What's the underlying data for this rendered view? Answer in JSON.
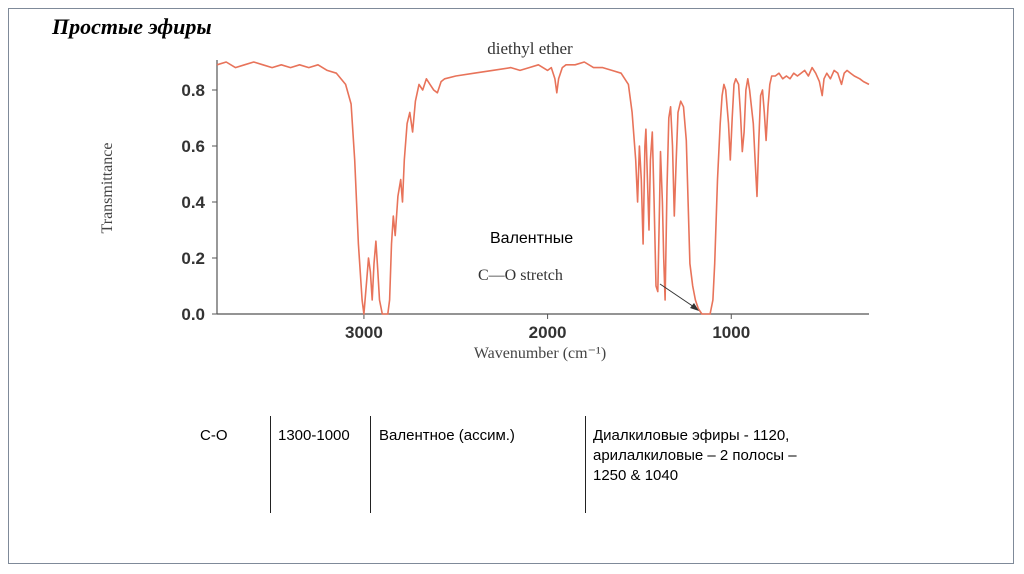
{
  "slide": {
    "title": "Простые эфиры"
  },
  "chart_data": {
    "type": "line",
    "title": "diethyl ether",
    "xlabel": "Wavenumber (cm⁻¹)",
    "ylabel": "Transmittance",
    "xlim": [
      3800,
      250
    ],
    "ylim": [
      0.0,
      0.9
    ],
    "x_reversed": true,
    "x_ticks": [
      3000,
      2000,
      1000
    ],
    "x_tick_labels": [
      "3000",
      "2000",
      "1000"
    ],
    "y_ticks": [
      0.0,
      0.2,
      0.4,
      0.6,
      0.8
    ],
    "y_tick_labels": [
      "0.0",
      "0.2",
      "0.4",
      "0.6",
      "0.8"
    ],
    "grid": false,
    "line_color": "#e8735a",
    "series": [
      {
        "points": [
          [
            3800,
            0.89
          ],
          [
            3750,
            0.9
          ],
          [
            3700,
            0.88
          ],
          [
            3650,
            0.89
          ],
          [
            3600,
            0.9
          ],
          [
            3550,
            0.89
          ],
          [
            3500,
            0.88
          ],
          [
            3450,
            0.89
          ],
          [
            3400,
            0.88
          ],
          [
            3350,
            0.89
          ],
          [
            3300,
            0.88
          ],
          [
            3250,
            0.89
          ],
          [
            3200,
            0.87
          ],
          [
            3150,
            0.86
          ],
          [
            3100,
            0.82
          ],
          [
            3070,
            0.75
          ],
          [
            3050,
            0.55
          ],
          [
            3030,
            0.25
          ],
          [
            3010,
            0.05
          ],
          [
            3000,
            0.0
          ],
          [
            2985,
            0.12
          ],
          [
            2975,
            0.2
          ],
          [
            2965,
            0.15
          ],
          [
            2955,
            0.05
          ],
          [
            2945,
            0.18
          ],
          [
            2935,
            0.26
          ],
          [
            2925,
            0.16
          ],
          [
            2915,
            0.05
          ],
          [
            2900,
            0.0
          ],
          [
            2880,
            0.0
          ],
          [
            2870,
            0.0
          ],
          [
            2860,
            0.05
          ],
          [
            2850,
            0.25
          ],
          [
            2840,
            0.35
          ],
          [
            2830,
            0.28
          ],
          [
            2815,
            0.42
          ],
          [
            2800,
            0.48
          ],
          [
            2790,
            0.4
          ],
          [
            2780,
            0.55
          ],
          [
            2765,
            0.68
          ],
          [
            2750,
            0.72
          ],
          [
            2735,
            0.65
          ],
          [
            2720,
            0.76
          ],
          [
            2700,
            0.82
          ],
          [
            2680,
            0.8
          ],
          [
            2660,
            0.84
          ],
          [
            2640,
            0.82
          ],
          [
            2620,
            0.8
          ],
          [
            2600,
            0.79
          ],
          [
            2580,
            0.83
          ],
          [
            2560,
            0.84
          ],
          [
            2500,
            0.85
          ],
          [
            2400,
            0.86
          ],
          [
            2300,
            0.87
          ],
          [
            2200,
            0.88
          ],
          [
            2150,
            0.87
          ],
          [
            2100,
            0.88
          ],
          [
            2050,
            0.89
          ],
          [
            2000,
            0.87
          ],
          [
            1980,
            0.88
          ],
          [
            1960,
            0.84
          ],
          [
            1950,
            0.79
          ],
          [
            1940,
            0.84
          ],
          [
            1920,
            0.88
          ],
          [
            1900,
            0.89
          ],
          [
            1850,
            0.89
          ],
          [
            1800,
            0.9
          ],
          [
            1750,
            0.88
          ],
          [
            1700,
            0.88
          ],
          [
            1650,
            0.87
          ],
          [
            1600,
            0.86
          ],
          [
            1560,
            0.82
          ],
          [
            1540,
            0.72
          ],
          [
            1520,
            0.55
          ],
          [
            1510,
            0.4
          ],
          [
            1500,
            0.6
          ],
          [
            1490,
            0.48
          ],
          [
            1480,
            0.25
          ],
          [
            1470,
            0.6
          ],
          [
            1465,
            0.66
          ],
          [
            1455,
            0.45
          ],
          [
            1448,
            0.3
          ],
          [
            1440,
            0.55
          ],
          [
            1430,
            0.65
          ],
          [
            1420,
            0.4
          ],
          [
            1410,
            0.1
          ],
          [
            1400,
            0.08
          ],
          [
            1390,
            0.4
          ],
          [
            1385,
            0.58
          ],
          [
            1375,
            0.4
          ],
          [
            1368,
            0.2
          ],
          [
            1360,
            0.05
          ],
          [
            1350,
            0.45
          ],
          [
            1340,
            0.7
          ],
          [
            1330,
            0.74
          ],
          [
            1320,
            0.6
          ],
          [
            1310,
            0.35
          ],
          [
            1300,
            0.55
          ],
          [
            1290,
            0.72
          ],
          [
            1275,
            0.76
          ],
          [
            1260,
            0.74
          ],
          [
            1245,
            0.62
          ],
          [
            1235,
            0.4
          ],
          [
            1225,
            0.18
          ],
          [
            1210,
            0.1
          ],
          [
            1195,
            0.05
          ],
          [
            1180,
            0.02
          ],
          [
            1160,
            0.0
          ],
          [
            1145,
            0.0
          ],
          [
            1130,
            0.0
          ],
          [
            1115,
            0.0
          ],
          [
            1100,
            0.05
          ],
          [
            1090,
            0.18
          ],
          [
            1075,
            0.48
          ],
          [
            1060,
            0.68
          ],
          [
            1050,
            0.78
          ],
          [
            1040,
            0.82
          ],
          [
            1030,
            0.8
          ],
          [
            1015,
            0.68
          ],
          [
            1005,
            0.55
          ],
          [
            995,
            0.7
          ],
          [
            985,
            0.82
          ],
          [
            975,
            0.84
          ],
          [
            960,
            0.82
          ],
          [
            950,
            0.72
          ],
          [
            940,
            0.58
          ],
          [
            930,
            0.65
          ],
          [
            920,
            0.8
          ],
          [
            910,
            0.84
          ],
          [
            900,
            0.8
          ],
          [
            880,
            0.68
          ],
          [
            870,
            0.55
          ],
          [
            860,
            0.42
          ],
          [
            850,
            0.62
          ],
          [
            840,
            0.78
          ],
          [
            830,
            0.8
          ],
          [
            820,
            0.72
          ],
          [
            810,
            0.62
          ],
          [
            800,
            0.74
          ],
          [
            790,
            0.82
          ],
          [
            780,
            0.85
          ],
          [
            760,
            0.85
          ],
          [
            740,
            0.86
          ],
          [
            720,
            0.84
          ],
          [
            700,
            0.85
          ],
          [
            680,
            0.84
          ],
          [
            660,
            0.86
          ],
          [
            640,
            0.85
          ],
          [
            620,
            0.86
          ],
          [
            600,
            0.87
          ],
          [
            580,
            0.85
          ],
          [
            560,
            0.88
          ],
          [
            540,
            0.86
          ],
          [
            520,
            0.83
          ],
          [
            505,
            0.78
          ],
          [
            495,
            0.84
          ],
          [
            480,
            0.86
          ],
          [
            460,
            0.84
          ],
          [
            440,
            0.87
          ],
          [
            420,
            0.86
          ],
          [
            400,
            0.82
          ],
          [
            385,
            0.86
          ],
          [
            370,
            0.87
          ],
          [
            350,
            0.86
          ],
          [
            330,
            0.85
          ],
          [
            300,
            0.84
          ],
          [
            280,
            0.83
          ],
          [
            250,
            0.82
          ]
        ]
      }
    ],
    "annotations": [
      {
        "text": "C—O stretch",
        "x": 1150,
        "y": 0.02
      }
    ]
  },
  "annotation_ru": "Валентные",
  "table": {
    "group": "C-O",
    "range": "1300-1000",
    "type": "Валентное (ассим.)",
    "description_lines": [
      "Диалкиловые эфиры - 1120,",
      "арилалкиловые – 2 полосы –",
      "1250 & 1040"
    ]
  }
}
